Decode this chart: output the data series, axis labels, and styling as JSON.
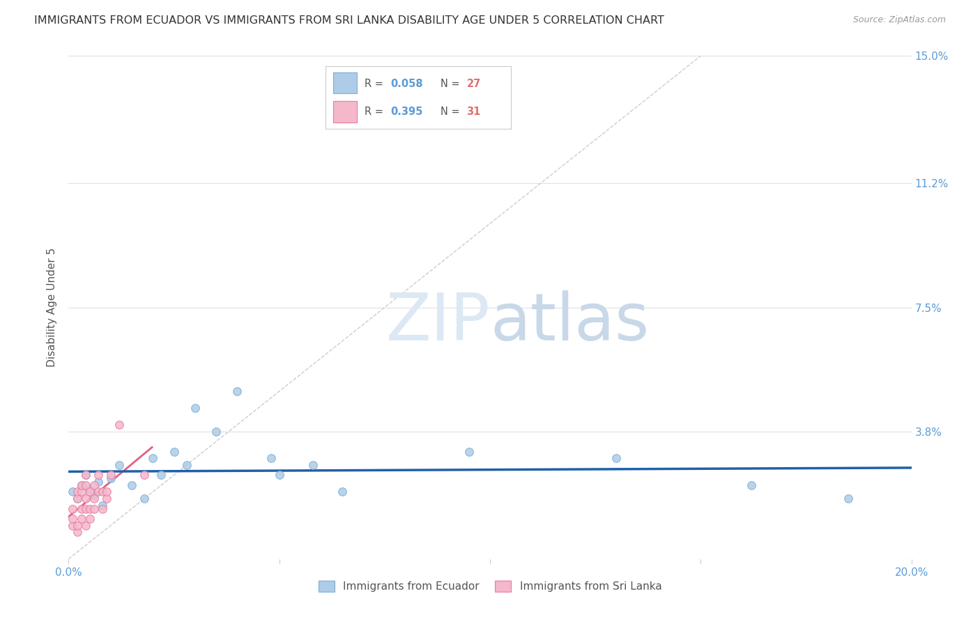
{
  "title": "IMMIGRANTS FROM ECUADOR VS IMMIGRANTS FROM SRI LANKA DISABILITY AGE UNDER 5 CORRELATION CHART",
  "source": "Source: ZipAtlas.com",
  "ylabel": "Disability Age Under 5",
  "xlim": [
    0.0,
    0.2
  ],
  "ylim": [
    0.0,
    0.15
  ],
  "yticks": [
    0.0,
    0.038,
    0.075,
    0.112,
    0.15
  ],
  "ytick_labels": [
    "",
    "3.8%",
    "7.5%",
    "11.2%",
    "15.0%"
  ],
  "xticks": [
    0.0,
    0.05,
    0.1,
    0.15,
    0.2
  ],
  "xtick_labels": [
    "0.0%",
    "",
    "",
    "",
    "20.0%"
  ],
  "ecuador_x": [
    0.001,
    0.002,
    0.003,
    0.004,
    0.005,
    0.006,
    0.007,
    0.008,
    0.01,
    0.012,
    0.015,
    0.018,
    0.02,
    0.022,
    0.025,
    0.028,
    0.03,
    0.035,
    0.04,
    0.048,
    0.05,
    0.058,
    0.065,
    0.095,
    0.13,
    0.162,
    0.185
  ],
  "ecuador_y": [
    0.02,
    0.018,
    0.022,
    0.025,
    0.021,
    0.019,
    0.023,
    0.016,
    0.024,
    0.028,
    0.022,
    0.018,
    0.03,
    0.025,
    0.032,
    0.028,
    0.045,
    0.038,
    0.05,
    0.03,
    0.025,
    0.028,
    0.02,
    0.032,
    0.03,
    0.022,
    0.018
  ],
  "srilanka_x": [
    0.001,
    0.001,
    0.001,
    0.002,
    0.002,
    0.002,
    0.002,
    0.003,
    0.003,
    0.003,
    0.003,
    0.004,
    0.004,
    0.004,
    0.004,
    0.004,
    0.005,
    0.005,
    0.005,
    0.006,
    0.006,
    0.006,
    0.007,
    0.007,
    0.008,
    0.008,
    0.009,
    0.009,
    0.01,
    0.012,
    0.018
  ],
  "srilanka_y": [
    0.01,
    0.012,
    0.015,
    0.008,
    0.01,
    0.018,
    0.02,
    0.012,
    0.015,
    0.02,
    0.022,
    0.01,
    0.015,
    0.018,
    0.022,
    0.025,
    0.012,
    0.015,
    0.02,
    0.015,
    0.018,
    0.022,
    0.025,
    0.02,
    0.015,
    0.02,
    0.018,
    0.02,
    0.025,
    0.04,
    0.025
  ],
  "ecuador_R": 0.058,
  "ecuador_N": 27,
  "srilanka_R": 0.395,
  "srilanka_N": 31,
  "ecuador_color": "#aecce8",
  "ecuador_edge_color": "#7aafd4",
  "srilanka_color": "#f5b8cb",
  "srilanka_edge_color": "#e87a9f",
  "blue_line_color": "#2060a8",
  "pink_line_color": "#e06080",
  "diagonal_color": "#cccccc",
  "watermark_color": "#dce8f4",
  "background_color": "#ffffff",
  "grid_color": "#e0e0e0",
  "title_color": "#333333",
  "title_fontsize": 11.5,
  "axis_label_color": "#555555",
  "tick_label_color": "#5b9bd5",
  "marker_size": 70,
  "legend_R_color": "#5b9bd5",
  "legend_N_color": "#e07070"
}
